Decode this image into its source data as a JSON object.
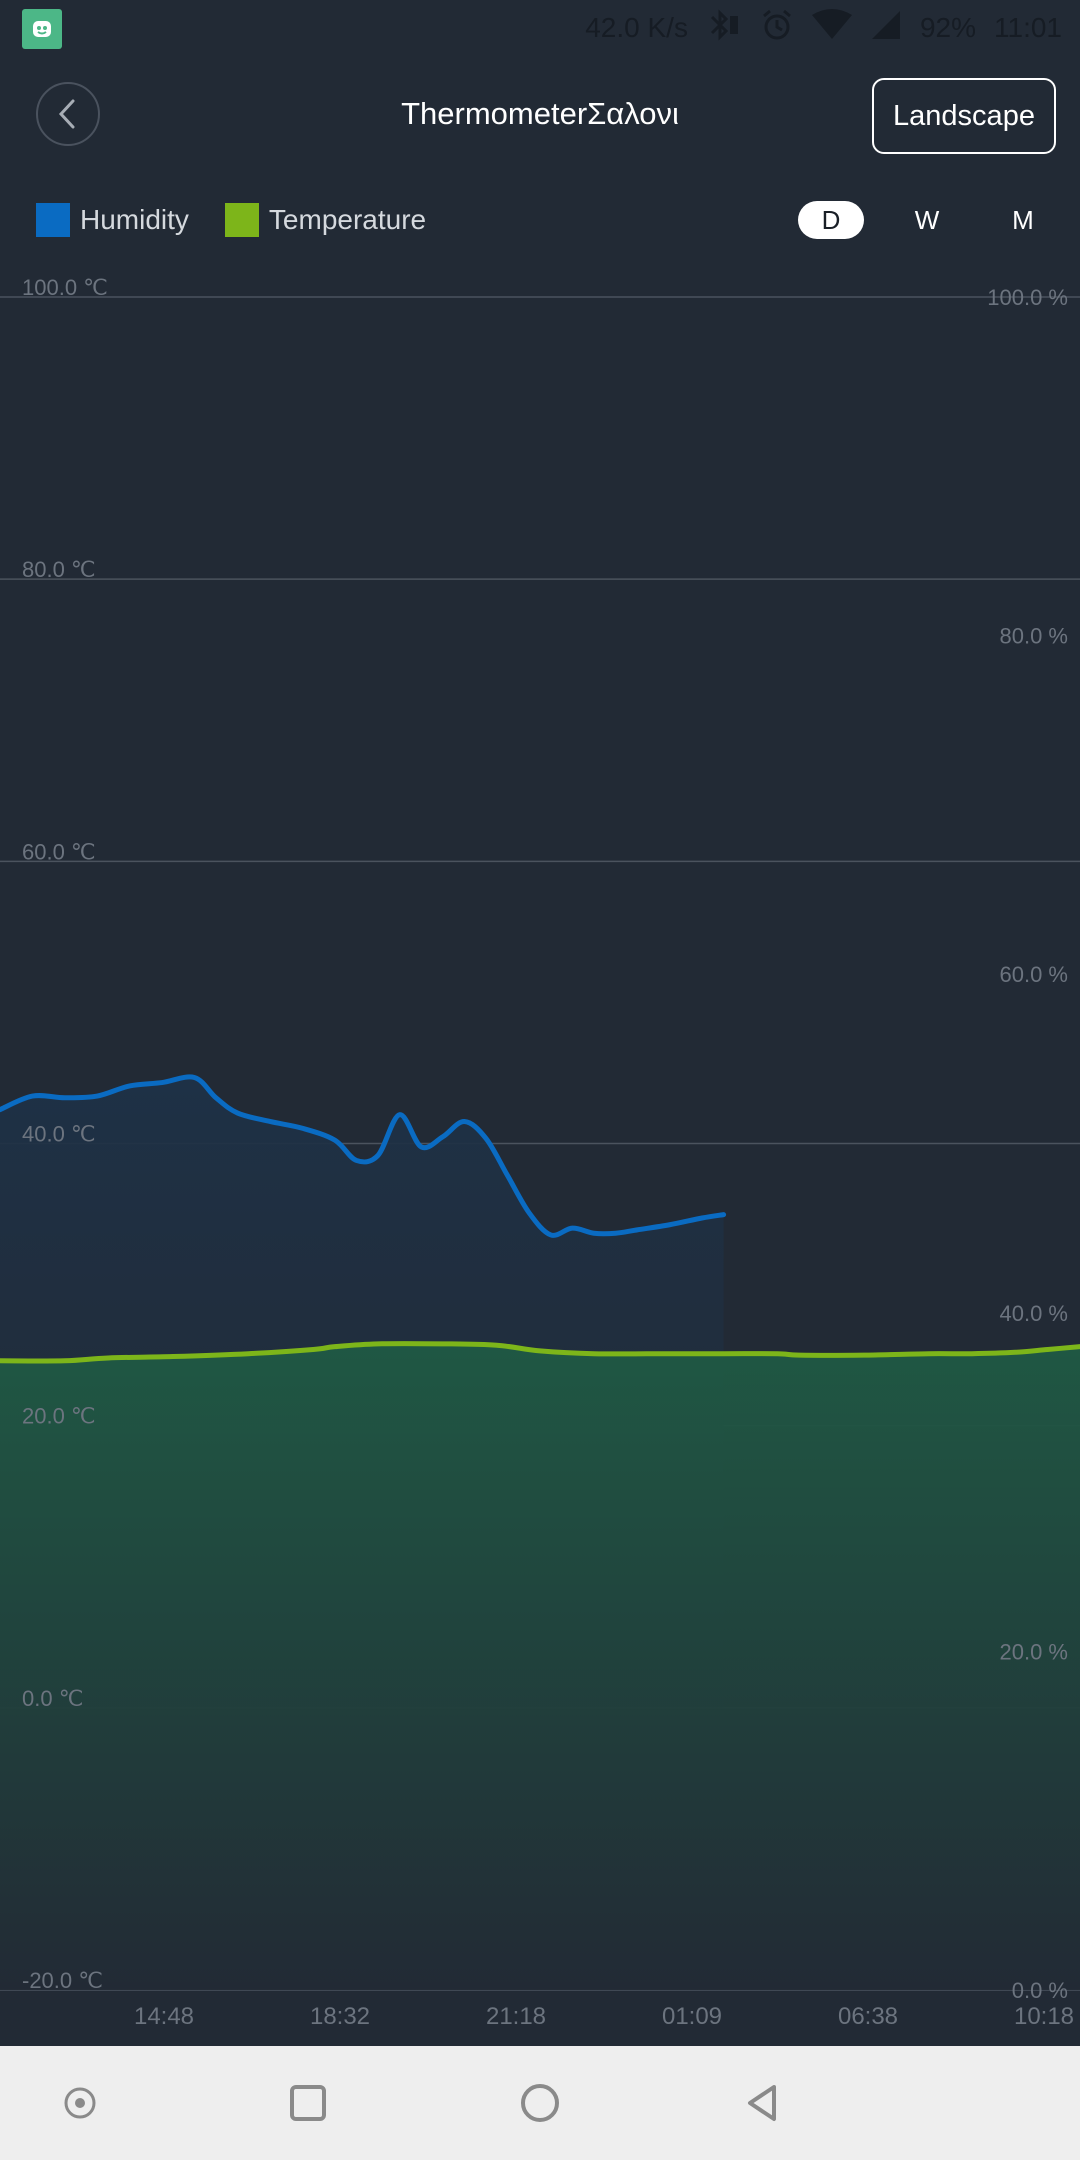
{
  "status_bar": {
    "speed": "42.0 K/s",
    "battery": "92%",
    "time": "11:01",
    "icons": [
      "app-icon",
      "bluetooth-icon",
      "alarm-icon",
      "wifi-icon",
      "cellular-icon"
    ]
  },
  "header": {
    "title": "ThermometerΣαλονι",
    "landscape_label": "Landscape"
  },
  "legend": [
    {
      "label": "Humidity",
      "color": "#0a6bc2"
    },
    {
      "label": "Temperature",
      "color": "#7db51a"
    }
  ],
  "tabs": [
    {
      "label": "D",
      "active": true
    },
    {
      "label": "W",
      "active": false
    },
    {
      "label": "M",
      "active": false
    }
  ],
  "chart_data": {
    "type": "line",
    "x_tick_labels": [
      "14:48",
      "18:32",
      "21:18",
      "01:09",
      "06:38",
      "10:18"
    ],
    "left_axis": {
      "unit": "℃",
      "ticks": [
        "100.0 ℃",
        "80.0 ℃",
        "60.0 ℃",
        "40.0 ℃",
        "20.0 ℃",
        "0.0 ℃",
        "-20.0 ℃"
      ],
      "range": [
        -20,
        100
      ]
    },
    "right_axis": {
      "unit": "%",
      "ticks": [
        "100.0 %",
        "80.0 %",
        "60.0 %",
        "40.0 %",
        "20.0 %",
        "0.0 %"
      ],
      "range": [
        0,
        100
      ]
    },
    "grid": true,
    "legend_position": "top-left",
    "series": [
      {
        "name": "Humidity",
        "axis": "right",
        "color": "#0a6bc2",
        "x_fraction": [
          0,
          0.03,
          0.06,
          0.09,
          0.12,
          0.15,
          0.18,
          0.2,
          0.22,
          0.25,
          0.28,
          0.31,
          0.33,
          0.35,
          0.37,
          0.39,
          0.41,
          0.43,
          0.45,
          0.47,
          0.49,
          0.51,
          0.53,
          0.55,
          0.57,
          0.59,
          0.62,
          0.65,
          0.67
        ],
        "values": [
          52.0,
          52.8,
          52.7,
          52.8,
          53.4,
          53.6,
          53.9,
          52.7,
          51.8,
          51.3,
          50.9,
          50.2,
          49.0,
          49.3,
          51.7,
          49.8,
          50.4,
          51.3,
          50.3,
          48.1,
          45.9,
          44.6,
          45.0,
          44.7,
          44.7,
          44.9,
          45.2,
          45.6,
          45.8
        ]
      },
      {
        "name": "Temperature",
        "axis": "left",
        "color": "#7db51a",
        "x_fraction": [
          0,
          0.06,
          0.1,
          0.16,
          0.23,
          0.29,
          0.31,
          0.35,
          0.41,
          0.46,
          0.5,
          0.55,
          0.62,
          0.67,
          0.72,
          0.74,
          0.8,
          0.86,
          0.9,
          0.94,
          0.97,
          1.0
        ],
        "values": [
          24.6,
          24.6,
          24.8,
          24.9,
          25.1,
          25.4,
          25.6,
          25.8,
          25.8,
          25.7,
          25.3,
          25.1,
          25.1,
          25.1,
          25.1,
          25.0,
          25.0,
          25.1,
          25.1,
          25.2,
          25.4,
          25.6
        ]
      }
    ]
  }
}
